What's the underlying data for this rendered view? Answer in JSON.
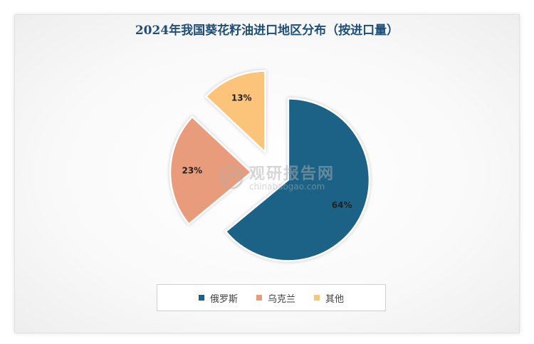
{
  "chart_data": {
    "type": "pie",
    "title": "2024年我国葵花籽油进口地区分布（按进口量）",
    "slices": [
      {
        "label": "俄罗斯",
        "value": 64,
        "display": "64%",
        "color": "#1a6286"
      },
      {
        "label": "乌克兰",
        "value": 23,
        "display": "23%",
        "color": "#e89c7c"
      },
      {
        "label": "其他",
        "value": 13,
        "display": "13%",
        "color": "#fcc37a"
      }
    ],
    "legend": {
      "placement": "bottom"
    }
  },
  "watermark": {
    "main": "观研报告网",
    "sub": "chinabaogao.com"
  }
}
